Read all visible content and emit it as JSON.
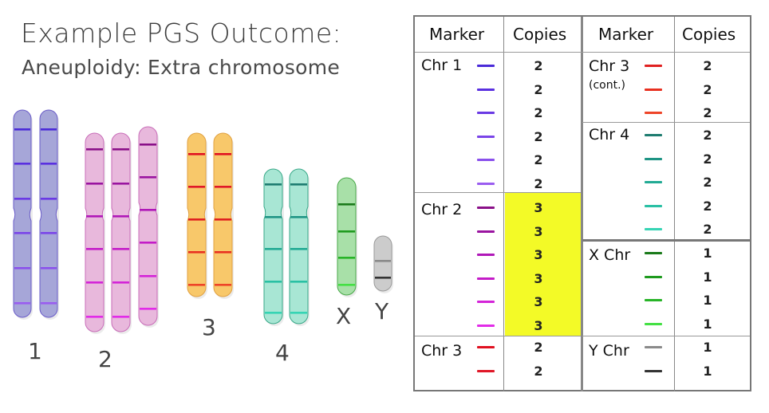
{
  "title": "Example PGS Outcome:",
  "subtitle": "Aneuploidy: Extra chromosome",
  "colors": {
    "chr1_fill": "#a6a6d8",
    "chr1_stroke": "#6a5cc8",
    "chr2_fill": "#e8b8dc",
    "chr2_stroke": "#c86cb8",
    "chr3_fill": "#f8c86a",
    "chr3_stroke": "#e0a040",
    "chr4_fill": "#a8e6d4",
    "chr4_stroke": "#38a888",
    "x_fill": "#a8e0a8",
    "x_stroke": "#48a848",
    "y_fill": "#cccccc",
    "y_stroke": "#999999",
    "highlight": "#f3fa27"
  },
  "groups": [
    {
      "label": "1",
      "copies": 2
    },
    {
      "label": "2",
      "copies": 3
    },
    {
      "label": "3",
      "copies": 2
    },
    {
      "label": "4",
      "copies": 2
    },
    {
      "label": "X",
      "copies": 1
    },
    {
      "label": "Y",
      "copies": 1
    }
  ],
  "table": {
    "headers": {
      "marker": "Marker",
      "copies": "Copies"
    },
    "left": {
      "chr1": {
        "label": "Chr 1",
        "markers": [
          "#4a2ad8",
          "#5a30e0",
          "#6a3ae4",
          "#7a44e8",
          "#8a50ec",
          "#9a5cf0"
        ],
        "copies": [
          "2",
          "2",
          "2",
          "2",
          "2",
          "2"
        ]
      },
      "chr2": {
        "label": "Chr 2",
        "markers": [
          "#8a1088",
          "#9a14a0",
          "#b018b8",
          "#c41cc8",
          "#d424d8",
          "#e22ce8"
        ],
        "copies": [
          "3",
          "3",
          "3",
          "3",
          "3",
          "3"
        ]
      },
      "chr3": {
        "label": "Chr 3",
        "markers": [
          "#e01020",
          "#e01828"
        ],
        "copies": [
          "2",
          "2"
        ]
      }
    },
    "right": {
      "chr3cont": {
        "label": "Chr 3",
        "sublabel": "(cont.)",
        "markers": [
          "#e02020",
          "#e83020",
          "#ee4428"
        ],
        "copies": [
          "2",
          "2",
          "2"
        ]
      },
      "chr4": {
        "label": "Chr 4",
        "markers": [
          "#1e7c70",
          "#1e9484",
          "#22aa94",
          "#2ac0a4",
          "#36d4b4"
        ],
        "copies": [
          "2",
          "2",
          "2",
          "2",
          "2"
        ]
      },
      "xchr": {
        "label": "X Chr",
        "markers": [
          "#1a7a1a",
          "#1e9a1e",
          "#28b428",
          "#44e044"
        ],
        "copies": [
          "1",
          "1",
          "1",
          "1"
        ]
      },
      "ychr": {
        "label": "Y Chr",
        "markers": [
          "#8a8a8a",
          "#333333"
        ],
        "copies": [
          "1",
          "1"
        ]
      }
    }
  }
}
